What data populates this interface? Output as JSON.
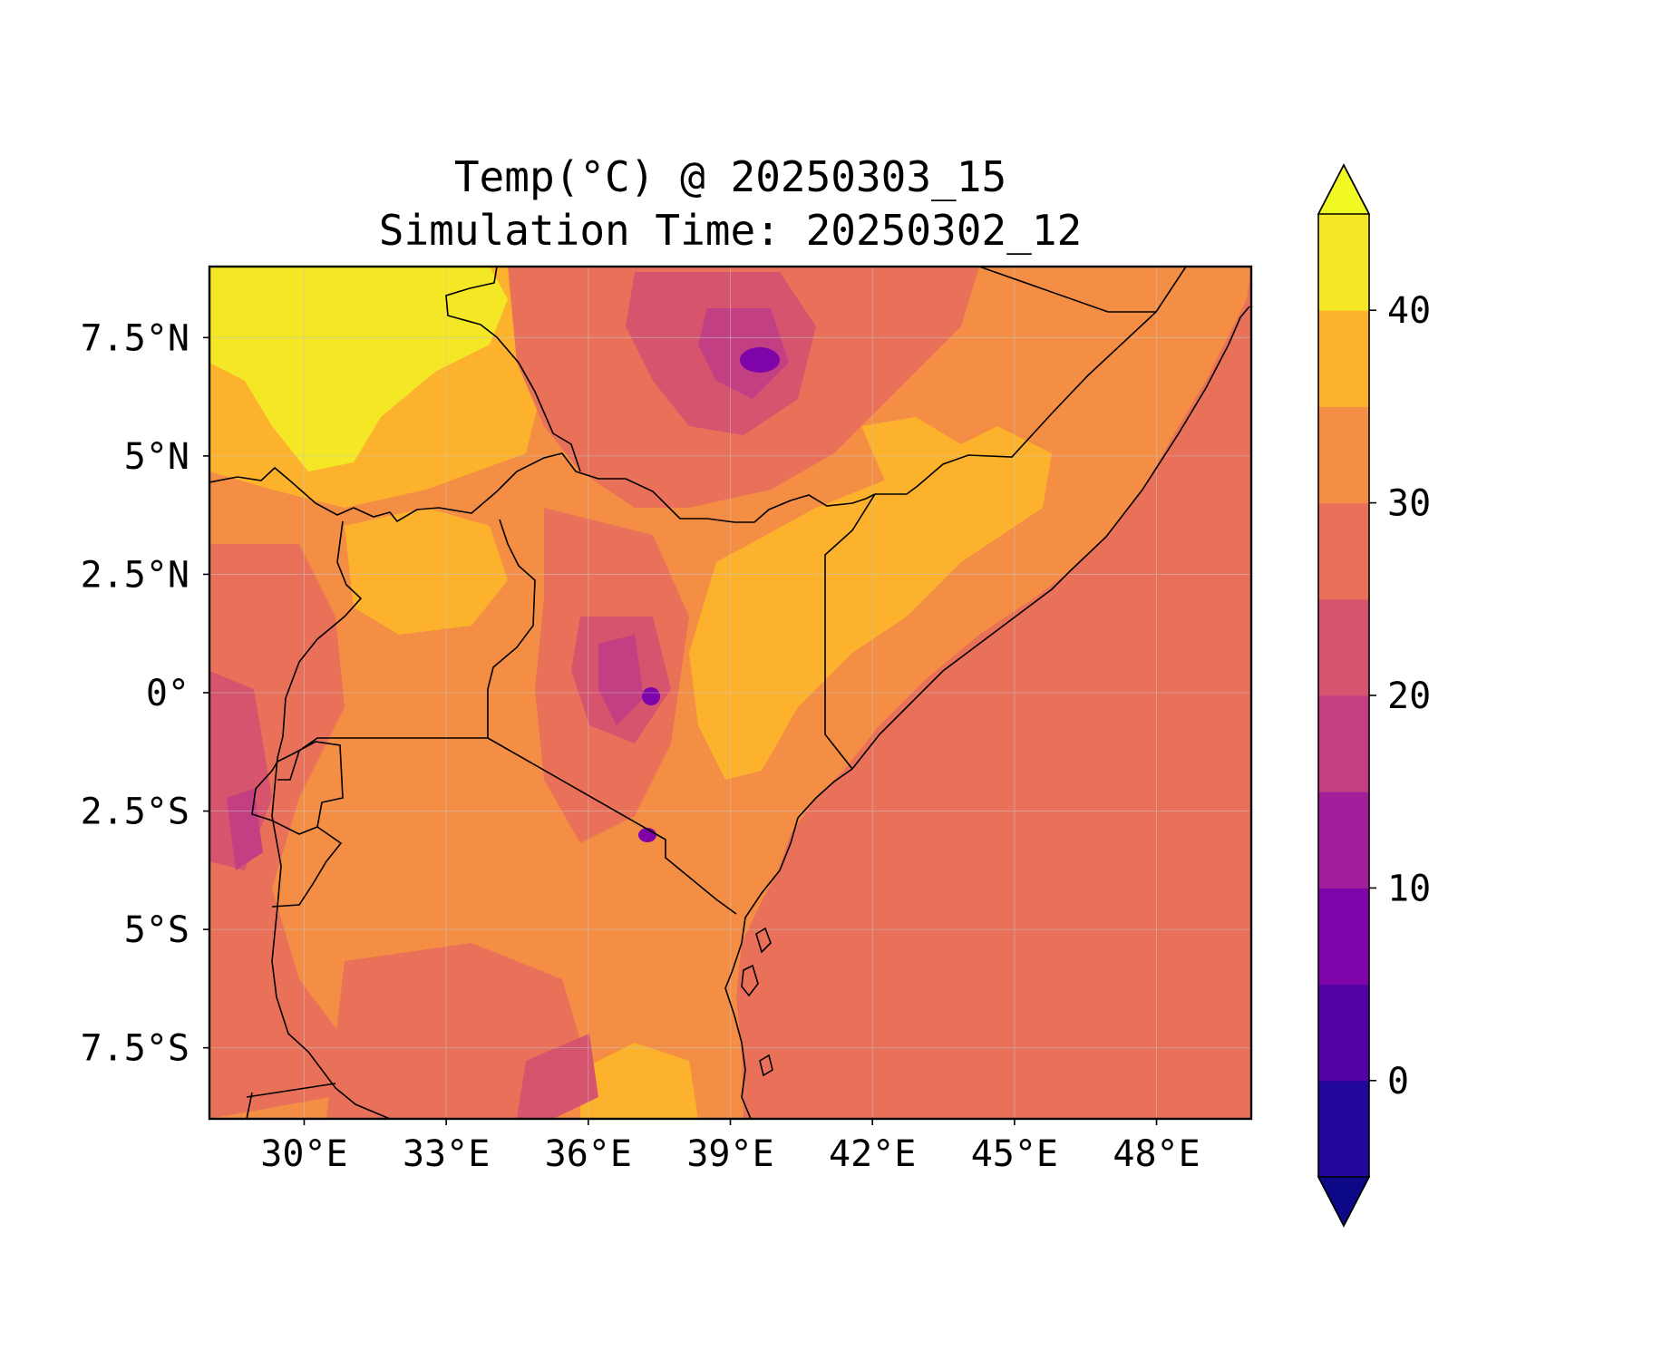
{
  "title": {
    "line1": "Temp(°C) @ 20250303_15",
    "line2": "Simulation Time: 20250302_12"
  },
  "map": {
    "lon_range": [
      28,
      50
    ],
    "lat_range": [
      -9,
      9
    ],
    "lon_ticks": [
      "30°E",
      "33°E",
      "36°E",
      "39°E",
      "42°E",
      "45°E",
      "48°E"
    ],
    "lon_tick_values": [
      30,
      33,
      36,
      39,
      42,
      45,
      48
    ],
    "lat_ticks": [
      "7.5°N",
      "5°N",
      "2.5°N",
      "0°",
      "2.5°S",
      "5°S",
      "7.5°S"
    ],
    "lat_tick_values": [
      7.5,
      5,
      2.5,
      0,
      -2.5,
      -5,
      -7.5
    ],
    "gridlines": true,
    "ocean_value_c": 28
  },
  "colorbar": {
    "levels": [
      -5,
      0,
      5,
      10,
      15,
      20,
      25,
      30,
      35,
      40,
      45
    ],
    "colors": [
      "#23079a",
      "#5402a3",
      "#7e03a8",
      "#a31e9b",
      "#c13f82",
      "#d6546e",
      "#e97159",
      "#f48e44",
      "#fcb22d",
      "#f4e725"
    ],
    "under_color": "#0d0887",
    "over_color": "#f0f921",
    "tick_labels": [
      "0",
      "10",
      "20",
      "30",
      "40"
    ],
    "tick_values": [
      0,
      10,
      20,
      30,
      40
    ],
    "extend": "both",
    "palette": "plasma"
  }
}
